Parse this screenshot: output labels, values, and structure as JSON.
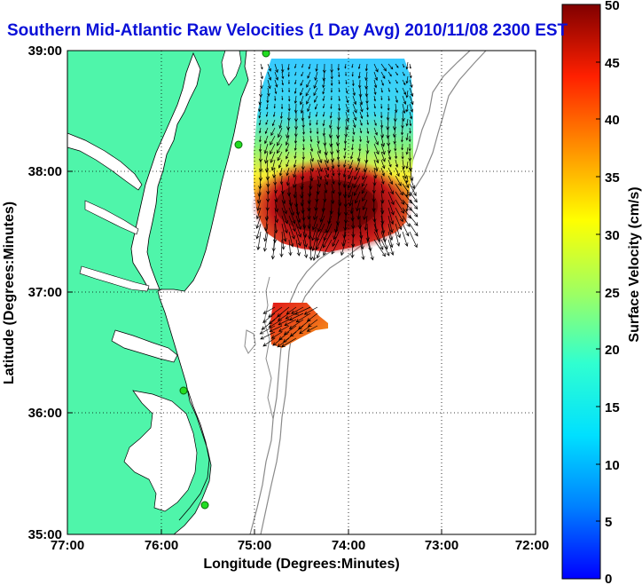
{
  "title": "Southern Mid-Atlantic Raw Velocities (1 Day Avg) 2010/11/08 2300 EST",
  "map": {
    "xlabel": "Longitude (Degrees:Minutes)",
    "ylabel": "Latitude (Degrees:Minutes)",
    "lon_ticks": [
      "77:00",
      "76:00",
      "75:00",
      "74:00",
      "73:00",
      "72:00"
    ],
    "lat_ticks": [
      "39:00",
      "38:00",
      "37:00",
      "36:00",
      "35:00"
    ],
    "lon_range": [
      -77,
      -72
    ],
    "lat_range": [
      35,
      39
    ],
    "grid": true,
    "land_color": "#4ff5aa",
    "ocean_color": "#ffffff",
    "station_color": "#22dd22",
    "bathymetry_color": "#8a8a8a",
    "arrow_color": "#000000"
  },
  "colorbar": {
    "label": "Surface Velocity (cm/s)",
    "ticks": [
      "50",
      "45",
      "40",
      "35",
      "30",
      "25",
      "20",
      "15",
      "10",
      "5",
      "0"
    ],
    "min": 0,
    "max": 50,
    "colormap": "jet"
  },
  "chart_data": {
    "type": "heatmap",
    "title": "Southern Mid-Atlantic Raw Velocities (1 Day Avg) 2010/11/08 2300 EST",
    "xlabel": "Longitude (Degrees:Minutes)",
    "ylabel": "Latitude (Degrees:Minutes)",
    "xlim": [
      -77,
      -72
    ],
    "ylim": [
      35,
      39
    ],
    "value_label": "Surface Velocity (cm/s)",
    "value_range": [
      0,
      50
    ],
    "regions": [
      {
        "lon_range": [
          -74.85,
          -73.25
        ],
        "lat_range": [
          37.3,
          38.9
        ],
        "typical_speed_north": 10,
        "peak_speed": 50,
        "peak_center": [
          -74.2,
          37.7
        ],
        "flow_direction": "south-southwest"
      },
      {
        "lon_range": [
          -74.9,
          -74.25
        ],
        "lat_range": [
          36.65,
          36.95
        ],
        "typical_speed": 38,
        "peak_speed": 48,
        "flow_direction": "southwest"
      }
    ],
    "stations": [
      [
        -75.1,
        38.95
      ],
      [
        -75.15,
        38.2
      ],
      [
        -75.75,
        36.2
      ],
      [
        -75.5,
        35.25
      ]
    ]
  }
}
